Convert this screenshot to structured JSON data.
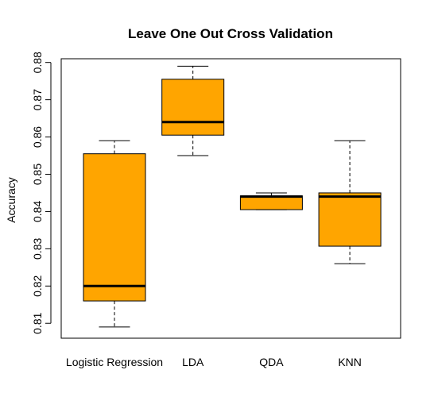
{
  "chart_data": {
    "type": "boxplot",
    "title": "Leave One Out Cross Validation",
    "xlabel": "",
    "ylabel": "Accuracy",
    "ylim": [
      0.806,
      0.881
    ],
    "yticks": [
      0.81,
      0.82,
      0.83,
      0.84,
      0.85,
      0.86,
      0.87,
      0.88
    ],
    "categories": [
      "Logistic Regression",
      "LDA",
      "QDA",
      "KNN"
    ],
    "boxes": [
      {
        "name": "Logistic Regression",
        "whisker_low": 0.809,
        "q1": 0.816,
        "median": 0.82,
        "q3": 0.8555,
        "whisker_high": 0.859
      },
      {
        "name": "LDA",
        "whisker_low": 0.855,
        "q1": 0.8605,
        "median": 0.864,
        "q3": 0.8755,
        "whisker_high": 0.879
      },
      {
        "name": "QDA",
        "whisker_low": 0.8405,
        "q1": 0.8405,
        "median": 0.844,
        "q3": 0.8442,
        "whisker_high": 0.845
      },
      {
        "name": "KNN",
        "whisker_low": 0.826,
        "q1": 0.8307,
        "median": 0.844,
        "q3": 0.845,
        "whisker_high": 0.859
      }
    ],
    "colors": {
      "box_fill": "#FFA500",
      "line": "#000000"
    },
    "grid": false
  }
}
